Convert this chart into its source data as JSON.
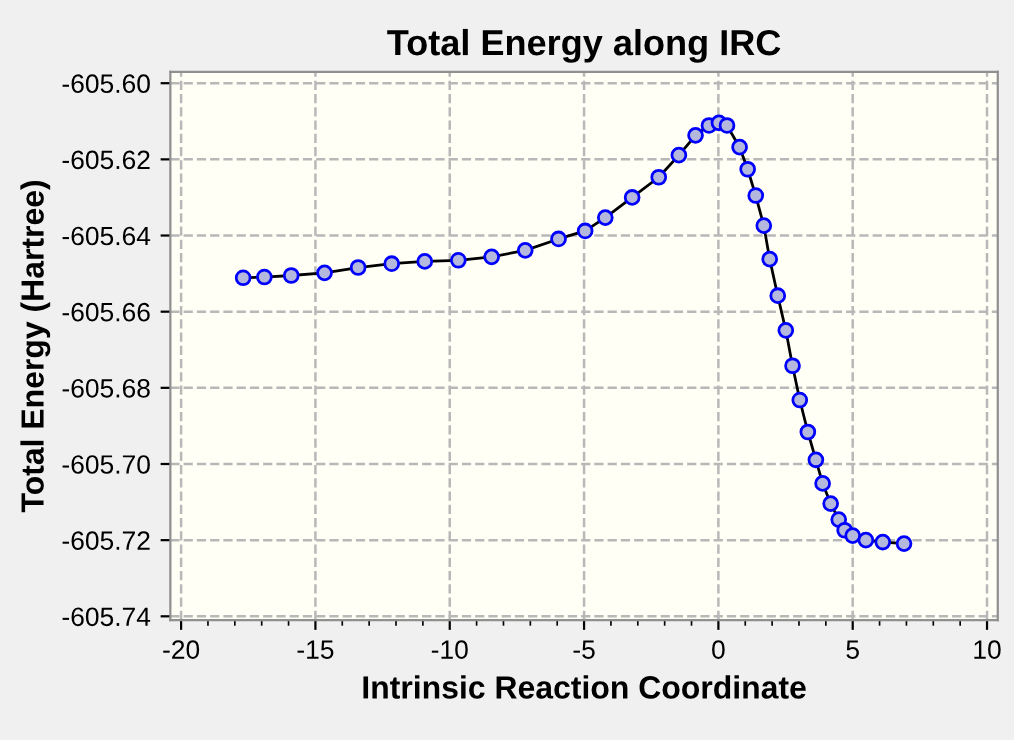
{
  "chart_data": {
    "type": "line",
    "title": "Total Energy along IRC",
    "xlabel": "Intrinsic Reaction Coordinate",
    "ylabel": "Total Energy (Hartree)",
    "x": [
      -17.69,
      -16.9,
      -15.9,
      -14.66,
      -13.41,
      -12.16,
      -10.93,
      -9.68,
      -8.44,
      -7.19,
      -5.95,
      -4.96,
      -4.21,
      -3.21,
      -2.22,
      -1.47,
      -0.85,
      -0.35,
      0.02,
      0.32,
      0.79,
      1.09,
      1.39,
      1.69,
      1.91,
      2.21,
      2.51,
      2.76,
      3.03,
      3.33,
      3.63,
      3.88,
      4.18,
      4.48,
      4.7,
      5.0,
      5.49,
      6.12,
      6.91
    ],
    "series": [
      {
        "color": "#0000ff",
        "values": [
          -605.6511,
          -605.6509,
          -605.6505,
          -605.6498,
          -605.6484,
          -605.6474,
          -605.6468,
          -605.6465,
          -605.6456,
          -605.6439,
          -605.6409,
          -605.6388,
          -605.6353,
          -605.63,
          -605.6247,
          -605.6189,
          -605.6137,
          -605.6111,
          -605.6104,
          -605.6111,
          -605.6168,
          -605.6226,
          -605.6295,
          -605.6374,
          -605.6462,
          -605.6558,
          -605.6649,
          -605.6742,
          -605.6832,
          -605.6916,
          -605.6989,
          -605.7051,
          -605.7104,
          -605.7146,
          -605.7174,
          -605.7188,
          -605.72,
          -605.7205,
          -605.7209
        ]
      }
    ],
    "xlim": [
      -20.4,
      10.4
    ],
    "ylim": [
      -605.741,
      -605.597
    ],
    "xticks": [
      -20,
      -15,
      -10,
      -5,
      0,
      5,
      10
    ],
    "yticks": [
      {
        "value": -605.6,
        "label": "-605.60"
      },
      {
        "value": -605.62,
        "label": "-605.62"
      },
      {
        "value": -605.64,
        "label": "-605.64"
      },
      {
        "value": -605.66,
        "label": "-605.66"
      },
      {
        "value": -605.68,
        "label": "-605.68"
      },
      {
        "value": -605.7,
        "label": "-605.70"
      },
      {
        "value": -605.72,
        "label": "-605.72"
      },
      {
        "value": -605.74,
        "label": "-605.74"
      }
    ],
    "grid": true,
    "marker": "circle",
    "line_style": "solid"
  }
}
